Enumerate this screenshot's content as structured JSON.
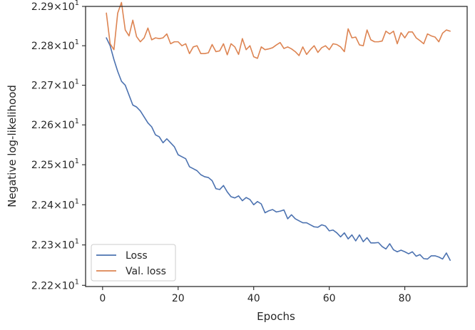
{
  "chart_data": {
    "type": "line",
    "title": "",
    "xlabel": "Epochs",
    "ylabel": "Negative log-likelihood",
    "xlim": [
      -4.5,
      96.5
    ],
    "ylim": [
      22.197,
      22.9
    ],
    "yscale": "log",
    "grid": false,
    "legend_position": "lower-left",
    "x_ticks": [
      {
        "value": 0,
        "label": "0"
      },
      {
        "value": 20,
        "label": "20"
      },
      {
        "value": 40,
        "label": "40"
      },
      {
        "value": 60,
        "label": "60"
      },
      {
        "value": 80,
        "label": "80"
      }
    ],
    "y_ticks": [
      {
        "value": 22.2,
        "mantissa": "2.22",
        "exp": "1"
      },
      {
        "value": 22.3,
        "mantissa": "2.23",
        "exp": "1"
      },
      {
        "value": 22.4,
        "mantissa": "2.24",
        "exp": "1"
      },
      {
        "value": 22.5,
        "mantissa": "2.25",
        "exp": "1"
      },
      {
        "value": 22.6,
        "mantissa": "2.26",
        "exp": "1"
      },
      {
        "value": 22.7,
        "mantissa": "2.27",
        "exp": "1"
      },
      {
        "value": 22.8,
        "mantissa": "2.28",
        "exp": "1"
      },
      {
        "value": 22.9,
        "mantissa": "2.29",
        "exp": "1"
      }
    ],
    "x": [
      1,
      2,
      3,
      4,
      5,
      6,
      7,
      8,
      9,
      10,
      11,
      12,
      13,
      14,
      15,
      16,
      17,
      18,
      19,
      20,
      21,
      22,
      23,
      24,
      25,
      26,
      27,
      28,
      29,
      30,
      31,
      32,
      33,
      34,
      35,
      36,
      37,
      38,
      39,
      40,
      41,
      42,
      43,
      44,
      45,
      46,
      47,
      48,
      49,
      50,
      51,
      52,
      53,
      54,
      55,
      56,
      57,
      58,
      59,
      60,
      61,
      62,
      63,
      64,
      65,
      66,
      67,
      68,
      69,
      70,
      71,
      72,
      73,
      74,
      75,
      76,
      77,
      78,
      79,
      80,
      81,
      82,
      83,
      84,
      85,
      86,
      87,
      88,
      89,
      90,
      91,
      92
    ],
    "series": [
      {
        "name": "Loss",
        "color": "#4c72b0",
        "values": [
          22.82,
          22.8,
          22.765,
          22.735,
          22.71,
          22.7,
          22.675,
          22.65,
          22.645,
          22.635,
          22.62,
          22.605,
          22.595,
          22.575,
          22.57,
          22.555,
          22.565,
          22.555,
          22.545,
          22.525,
          22.52,
          22.515,
          22.495,
          22.49,
          22.485,
          22.475,
          22.47,
          22.468,
          22.46,
          22.44,
          22.438,
          22.448,
          22.432,
          22.42,
          22.417,
          22.422,
          22.41,
          22.418,
          22.413,
          22.4,
          22.408,
          22.402,
          22.38,
          22.385,
          22.388,
          22.382,
          22.384,
          22.387,
          22.365,
          22.375,
          22.365,
          22.36,
          22.355,
          22.355,
          22.35,
          22.345,
          22.344,
          22.35,
          22.347,
          22.335,
          22.337,
          22.33,
          22.32,
          22.33,
          22.315,
          22.325,
          22.31,
          22.325,
          22.308,
          22.318,
          22.305,
          22.305,
          22.306,
          22.296,
          22.29,
          22.303,
          22.288,
          22.283,
          22.287,
          22.283,
          22.278,
          22.283,
          22.272,
          22.276,
          22.266,
          22.265,
          22.273,
          22.273,
          22.27,
          22.265,
          22.28,
          22.262
        ]
      },
      {
        "name": "Val. loss",
        "color": "#dd8452",
        "values": [
          22.883,
          22.805,
          22.79,
          22.883,
          22.91,
          22.84,
          22.825,
          22.865,
          22.823,
          22.81,
          22.82,
          22.845,
          22.815,
          22.82,
          22.818,
          22.82,
          22.83,
          22.805,
          22.81,
          22.81,
          22.8,
          22.805,
          22.78,
          22.797,
          22.8,
          22.78,
          22.78,
          22.782,
          22.803,
          22.785,
          22.787,
          22.805,
          22.777,
          22.805,
          22.797,
          22.778,
          22.818,
          22.79,
          22.8,
          22.772,
          22.768,
          22.797,
          22.79,
          22.792,
          22.795,
          22.802,
          22.808,
          22.793,
          22.797,
          22.792,
          22.785,
          22.775,
          22.797,
          22.778,
          22.79,
          22.8,
          22.783,
          22.795,
          22.8,
          22.79,
          22.805,
          22.803,
          22.797,
          22.785,
          22.843,
          22.82,
          22.822,
          22.802,
          22.8,
          22.84,
          22.815,
          22.81,
          22.81,
          22.812,
          22.837,
          22.83,
          22.837,
          22.805,
          22.833,
          22.82,
          22.835,
          22.835,
          22.82,
          22.813,
          22.805,
          22.83,
          22.825,
          22.822,
          22.81,
          22.832,
          22.84,
          22.837
        ]
      }
    ]
  }
}
